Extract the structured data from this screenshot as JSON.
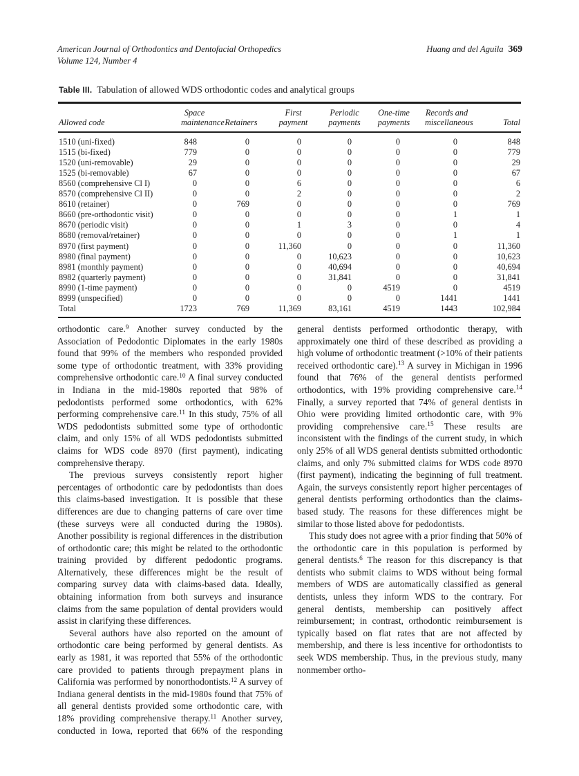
{
  "header": {
    "journal": "American Journal of Orthodontics and Dentofacial Orthopedics",
    "issue": "Volume 124, Number 4",
    "authors": "Huang and del Aguila",
    "page_number": "369"
  },
  "table": {
    "label": "Table III.",
    "caption": "Tabulation of allowed WDS orthodontic codes and analytical groups",
    "columns": [
      "Allowed code",
      "Space\nmaintenance",
      "Retainers",
      "First\npayment",
      "Periodic\npayments",
      "One-time\npayments",
      "Records and\nmiscellaneous",
      "Total"
    ],
    "rows": [
      [
        "1510 (uni-fixed)",
        "848",
        "0",
        "0",
        "0",
        "0",
        "0",
        "848"
      ],
      [
        "1515 (bi-fixed)",
        "779",
        "0",
        "0",
        "0",
        "0",
        "0",
        "779"
      ],
      [
        "1520 (uni-removable)",
        "29",
        "0",
        "0",
        "0",
        "0",
        "0",
        "29"
      ],
      [
        "1525 (bi-removable)",
        "67",
        "0",
        "0",
        "0",
        "0",
        "0",
        "67"
      ],
      [
        "8560 (comprehensive Cl I)",
        "0",
        "0",
        "6",
        "0",
        "0",
        "0",
        "6"
      ],
      [
        "8570 (comprehensive Cl II)",
        "0",
        "0",
        "2",
        "0",
        "0",
        "0",
        "2"
      ],
      [
        "8610 (retainer)",
        "0",
        "769",
        "0",
        "0",
        "0",
        "0",
        "769"
      ],
      [
        "8660 (pre-orthodontic visit)",
        "0",
        "0",
        "0",
        "0",
        "0",
        "1",
        "1"
      ],
      [
        "8670 (periodic visit)",
        "0",
        "0",
        "1",
        "3",
        "0",
        "0",
        "4"
      ],
      [
        "8680 (removal/retainer)",
        "0",
        "0",
        "0",
        "0",
        "0",
        "1",
        "1"
      ],
      [
        "8970 (first payment)",
        "0",
        "0",
        "11,360",
        "0",
        "0",
        "0",
        "11,360"
      ],
      [
        "8980 (final payment)",
        "0",
        "0",
        "0",
        "10,623",
        "0",
        "0",
        "10,623"
      ],
      [
        "8981 (monthly payment)",
        "0",
        "0",
        "0",
        "40,694",
        "0",
        "0",
        "40,694"
      ],
      [
        "8982 (quarterly payment)",
        "0",
        "0",
        "0",
        "31,841",
        "0",
        "0",
        "31,841"
      ],
      [
        "8990 (1-time payment)",
        "0",
        "0",
        "0",
        "0",
        "4519",
        "0",
        "4519"
      ],
      [
        "8999 (unspecified)",
        "0",
        "0",
        "0",
        "0",
        "0",
        "1441",
        "1441"
      ],
      [
        "Total",
        "1723",
        "769",
        "11,369",
        "83,161",
        "4519",
        "1443",
        "102,984"
      ]
    ]
  },
  "article": {
    "paragraphs": [
      {
        "indent": false,
        "text": "orthodontic care.^{9} Another survey conducted by the Association of Pedodontic Diplomates in the early 1980s found that 99% of the members who responded provided some type of orthodontic treatment, with 33% providing comprehensive orthodontic care.^{10} A final survey conducted in Indiana in the mid-1980s reported that 98% of pedodontists performed some orthodontics, with 62% performing comprehensive care.^{11} In this study, 75% of all WDS pedodontists submitted some type of orthodontic claim, and only 15% of all WDS pedodontists submitted claims for WDS code 8970 (first payment), indicating comprehensive therapy."
      },
      {
        "indent": true,
        "text": "The previous surveys consistently report higher percentages of orthodontic care by pedodontists than does this claims-based investigation. It is possible that these differences are due to changing patterns of care over time (these surveys were all conducted during the 1980s). Another possibility is regional differences in the distribution of orthodontic care; this might be related to the orthodontic training provided by different pedodontic programs. Alternatively, these differences might be the result of comparing survey data with claims-based data. Ideally, obtaining information from both surveys and insurance claims from the same population of dental providers would assist in clarifying these differences."
      },
      {
        "indent": true,
        "text": "Several authors have also reported on the amount of orthodontic care being performed by general dentists. As early as 1981, it was reported that 55% of the orthodontic care provided to patients through prepayment plans in California was performed by nonorthodontists.^{12} A survey of Indiana general dentists in the mid-1980s found that 75% of all general dentists provided some orthodontic care, with 18% providing comprehensive therapy.^{11} Another survey, conducted in Iowa, reported that 66% of the responding general dentists performed orthodontic therapy, with approximately one third of these described as providing a high volume of orthodontic treatment (>10% of their patients received orthodontic care).^{13} A survey in Michigan in 1996 found that 76% of the general dentists performed orthodontics, with 19% providing comprehensive care.^{14} Finally, a survey reported that 74% of general dentists in Ohio were providing limited orthodontic care, with 9% providing comprehensive care.^{15} These results are inconsistent with the findings of the current study, in which only 25% of all WDS general dentists submitted orthodontic claims, and only 7% submitted claims for WDS code 8970 (first payment), indicating the beginning of full treatment. Again, the surveys consistently report higher percentages of general dentists performing orthodontics than the claims-based study. The reasons for these differences might be similar to those listed above for pedodontists."
      },
      {
        "indent": true,
        "text": "This study does not agree with a prior finding that 50% of the orthodontic care in this population is performed by general dentists.^{6} The reason for this discrepancy is that dentists who submit claims to WDS without being formal members of WDS are automatically classified as general dentists, unless they inform WDS to the contrary. For general dentists, membership can positively affect reimbursement; in contrast, orthodontic reimbursement is typically based on flat rates that are not affected by membership, and there is less incentive for orthodontists to seek WDS membership. Thus, in the previous study, many nonmember ortho-"
      }
    ]
  }
}
